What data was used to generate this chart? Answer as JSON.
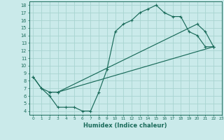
{
  "xlabel": "Humidex (Indice chaleur)",
  "xlim": [
    -0.5,
    23
  ],
  "ylim": [
    3.5,
    18.5
  ],
  "xticks": [
    0,
    1,
    2,
    3,
    4,
    5,
    6,
    7,
    8,
    9,
    10,
    11,
    12,
    13,
    14,
    15,
    16,
    17,
    18,
    19,
    20,
    21,
    22,
    23
  ],
  "yticks": [
    4,
    5,
    6,
    7,
    8,
    9,
    10,
    11,
    12,
    13,
    14,
    15,
    16,
    17,
    18
  ],
  "bg_color": "#caeaea",
  "grid_color": "#a8d4d0",
  "line_color": "#1a6b5a",
  "curve1_x": [
    0,
    1,
    2,
    3,
    4,
    5,
    6,
    7,
    8,
    9,
    10,
    11,
    12,
    13,
    14,
    15,
    16,
    17,
    18,
    19,
    20,
    21,
    22
  ],
  "curve1_y": [
    8.5,
    7.0,
    6.0,
    4.5,
    4.5,
    4.5,
    4.0,
    4.0,
    6.5,
    9.5,
    14.5,
    15.5,
    16.0,
    17.0,
    17.5,
    18.0,
    17.0,
    16.5,
    16.5,
    14.5,
    14.0,
    12.5,
    12.5
  ],
  "curve2_x": [
    0,
    1,
    2,
    3,
    22
  ],
  "curve2_y": [
    8.5,
    7.0,
    6.5,
    6.5,
    12.5
  ],
  "curve3_x": [
    2,
    3,
    20,
    21,
    22
  ],
  "curve3_y": [
    6.5,
    6.5,
    15.5,
    14.5,
    12.5
  ]
}
